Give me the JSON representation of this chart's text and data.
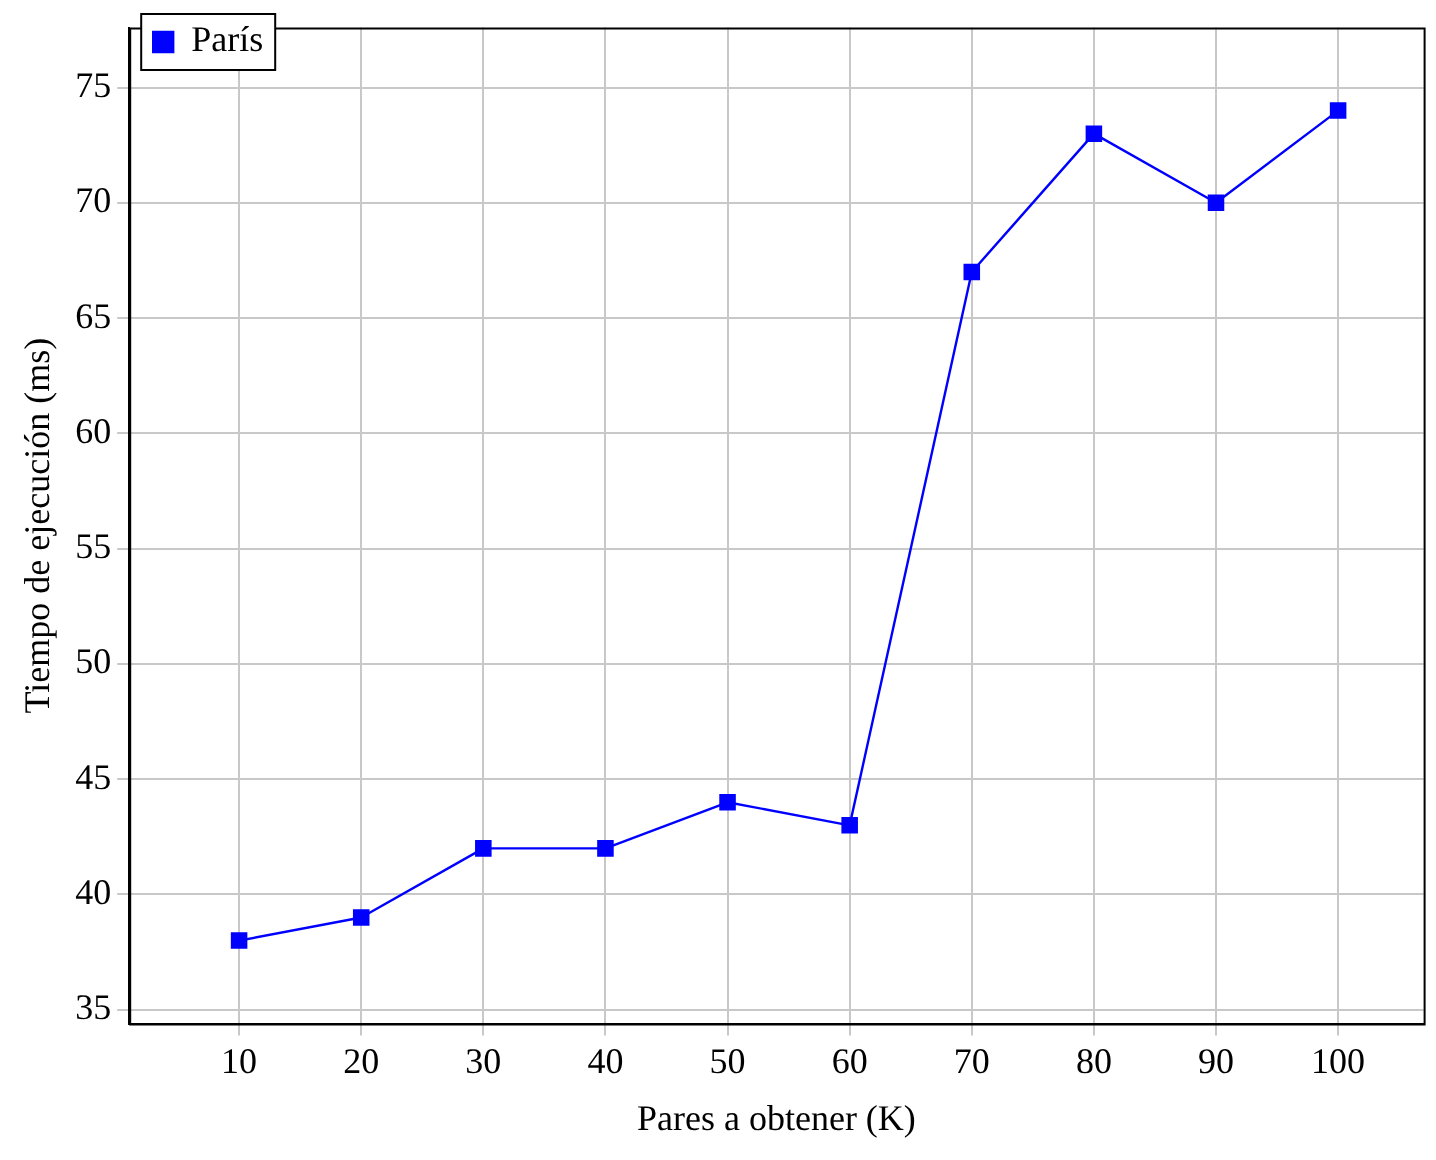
{
  "chart_data": {
    "type": "line",
    "xlabel": "Pares a obtener (K)",
    "ylabel": "Tiempo de ejecución (ms)",
    "x": [
      10,
      20,
      30,
      40,
      50,
      60,
      70,
      80,
      90,
      100
    ],
    "series": [
      {
        "name": "París",
        "color": "#0000ff",
        "values": [
          38,
          39,
          42,
          42,
          44,
          43,
          67,
          73,
          70,
          74
        ]
      }
    ],
    "xlim": [
      1,
      107
    ],
    "xticks": [
      10,
      20,
      30,
      40,
      50,
      60,
      70,
      80,
      90,
      100
    ],
    "ylim": [
      34.4,
      77.6
    ],
    "yticks": [
      35,
      40,
      45,
      50,
      55,
      60,
      65,
      70,
      75
    ],
    "grid": true,
    "legend": "top left",
    "marker": "square",
    "line_style": "solid"
  }
}
